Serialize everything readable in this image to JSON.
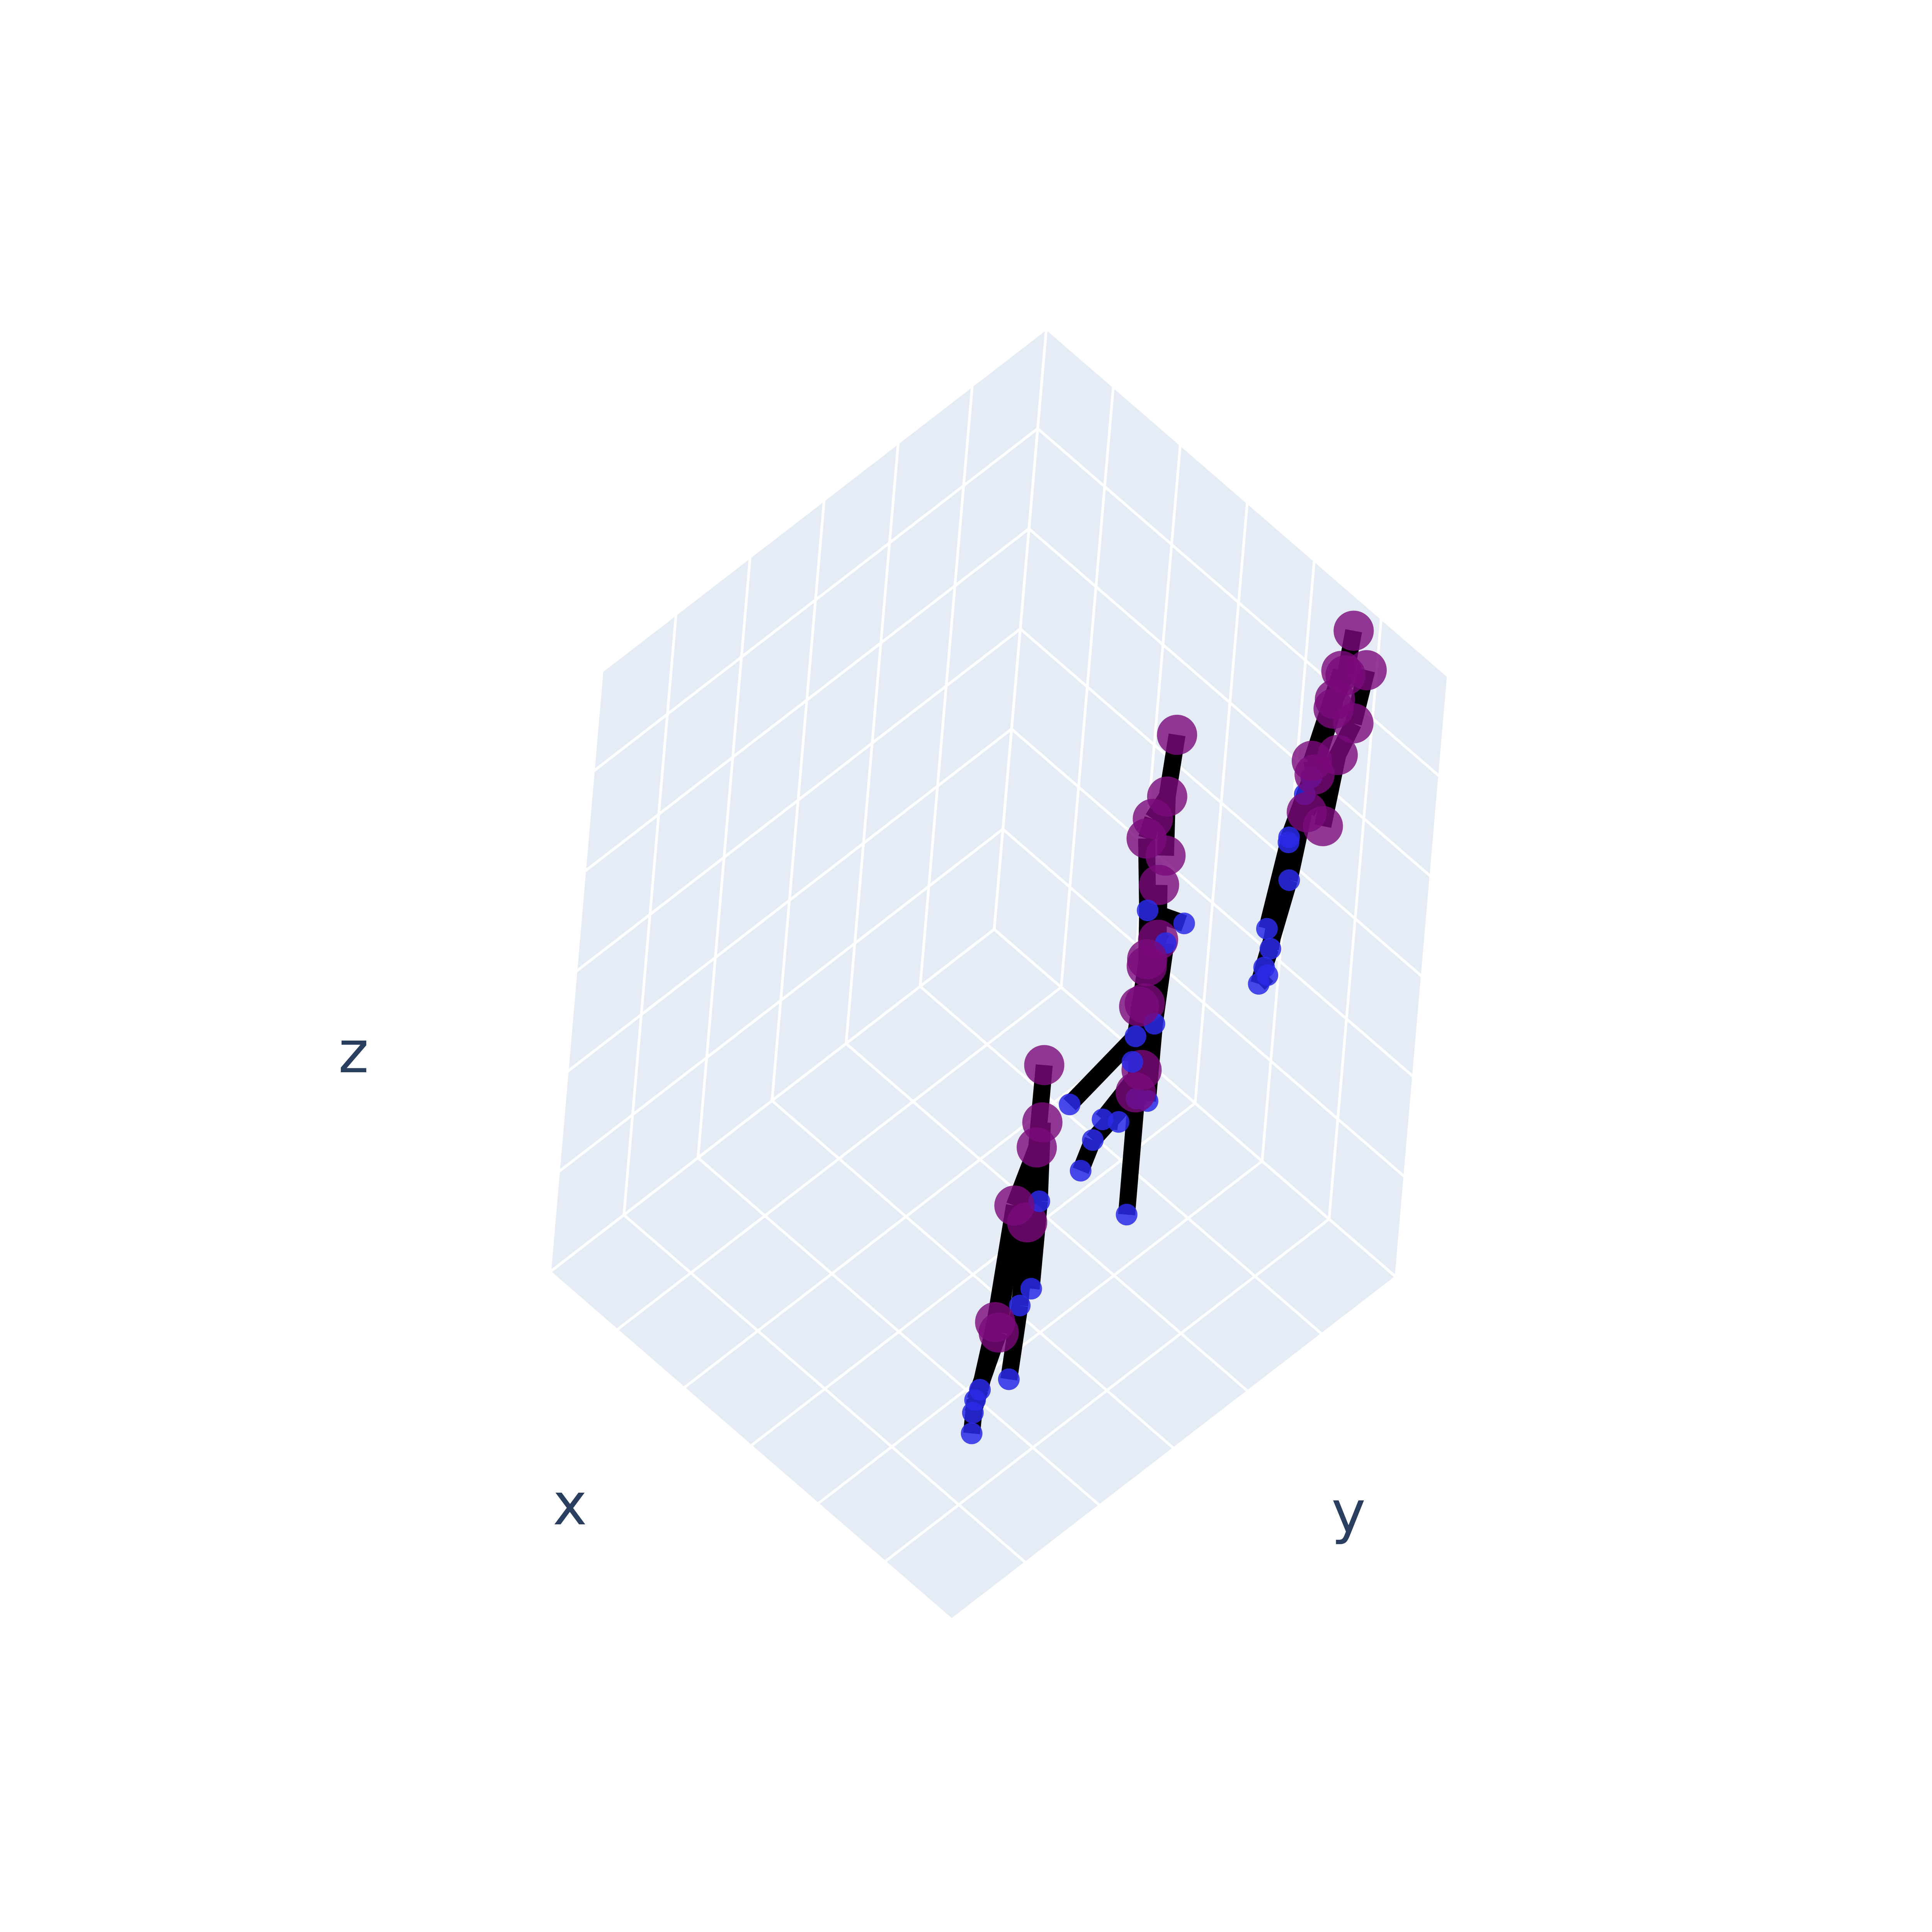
{
  "chart_data": {
    "type": "scatter",
    "mode": "3d-markers-and-lines",
    "scene": {
      "background_color": "#e5ecf6",
      "grid_color": "#ffffff",
      "grid": true,
      "axes": {
        "x": {
          "label": "x",
          "range": [
            0,
            1
          ],
          "tick_labels_shown": false
        },
        "y": {
          "label": "y",
          "range": [
            0,
            1
          ],
          "tick_labels_shown": false
        },
        "z": {
          "label": "z",
          "range": [
            0,
            1
          ],
          "tick_labels_shown": false
        }
      }
    },
    "styles": {
      "bone_color": "#000000",
      "joint_large_color": "#7a0a7a",
      "joint_small_color": "#2a2ae6"
    },
    "skeletons": [
      {
        "joints": [
          {
            "x": 0.07,
            "y": 0.18,
            "z": 0.78,
            "kind": "large"
          },
          {
            "x": 0.09,
            "y": 0.2,
            "z": 0.62,
            "kind": "large"
          },
          {
            "x": 0.03,
            "y": 0.13,
            "z": 0.57,
            "kind": "large"
          },
          {
            "x": 0.13,
            "y": 0.25,
            "z": 0.61,
            "kind": "large"
          },
          {
            "x": 0.04,
            "y": 0.14,
            "z": 0.42,
            "kind": "small"
          },
          {
            "x": 0.15,
            "y": 0.28,
            "z": 0.45,
            "kind": "small"
          },
          {
            "x": 0.06,
            "y": 0.15,
            "z": 0.28,
            "kind": "small"
          },
          {
            "x": 0.18,
            "y": 0.31,
            "z": 0.27,
            "kind": "small"
          },
          {
            "x": 0.13,
            "y": 0.2,
            "z": 0.5,
            "kind": "large"
          },
          {
            "x": 0.16,
            "y": 0.22,
            "z": 0.26,
            "kind": "large"
          },
          {
            "x": 0.18,
            "y": 0.23,
            "z": 0.26,
            "kind": "large"
          },
          {
            "x": 0.23,
            "y": 0.25,
            "z": 0.09,
            "kind": "small"
          },
          {
            "x": 0.24,
            "y": 0.27,
            "z": 0.09,
            "kind": "small"
          },
          {
            "x": 0.26,
            "y": 0.28,
            "z": 0.0,
            "kind": "small"
          },
          {
            "x": 0.29,
            "y": 0.31,
            "z": 0.0,
            "kind": "small"
          }
        ],
        "bones": [
          [
            0,
            1
          ],
          [
            1,
            2
          ],
          [
            1,
            3
          ],
          [
            2,
            4
          ],
          [
            4,
            6
          ],
          [
            3,
            5
          ],
          [
            5,
            7
          ],
          [
            1,
            8
          ],
          [
            8,
            9
          ],
          [
            8,
            10
          ],
          [
            9,
            11
          ],
          [
            10,
            12
          ],
          [
            11,
            13
          ],
          [
            12,
            14
          ]
        ]
      },
      {
        "joints": [
          {
            "x": 0.09,
            "y": 0.44,
            "z": 0.92,
            "kind": "large"
          },
          {
            "x": 0.11,
            "y": 0.47,
            "z": 0.8,
            "kind": "large"
          },
          {
            "x": 0.08,
            "y": 0.42,
            "z": 0.74,
            "kind": "large"
          },
          {
            "x": 0.13,
            "y": 0.51,
            "z": 0.76,
            "kind": "small"
          },
          {
            "x": 0.09,
            "y": 0.43,
            "z": 0.57,
            "kind": "small"
          },
          {
            "x": 0.14,
            "y": 0.51,
            "z": 0.62,
            "kind": "small"
          },
          {
            "x": 0.07,
            "y": 0.41,
            "z": 0.4,
            "kind": "small"
          },
          {
            "x": 0.15,
            "y": 0.52,
            "z": 0.48,
            "kind": "small"
          },
          {
            "x": 0.15,
            "y": 0.48,
            "z": 0.66,
            "kind": "large"
          },
          {
            "x": 0.16,
            "y": 0.5,
            "z": 0.5,
            "kind": "large"
          },
          {
            "x": 0.17,
            "y": 0.52,
            "z": 0.52,
            "kind": "large"
          },
          {
            "x": 0.24,
            "y": 0.49,
            "z": 0.38,
            "kind": "small"
          },
          {
            "x": 0.26,
            "y": 0.53,
            "z": 0.38,
            "kind": "small"
          },
          {
            "x": 0.31,
            "y": 0.54,
            "z": 0.26,
            "kind": "small"
          },
          {
            "x": 0.28,
            "y": 0.59,
            "z": 0.33,
            "kind": "small"
          }
        ],
        "bones": [
          [
            0,
            1
          ],
          [
            1,
            2
          ],
          [
            1,
            3
          ],
          [
            2,
            4
          ],
          [
            4,
            6
          ],
          [
            3,
            5
          ],
          [
            5,
            7
          ],
          [
            1,
            8
          ],
          [
            8,
            9
          ],
          [
            8,
            10
          ],
          [
            9,
            11
          ],
          [
            10,
            12
          ],
          [
            11,
            13
          ],
          [
            12,
            14
          ]
        ]
      },
      {
        "joints": [
          {
            "x": 0.28,
            "y": 0.65,
            "z": 0.94,
            "kind": "large"
          },
          {
            "x": 0.3,
            "y": 0.66,
            "z": 0.82,
            "kind": "large"
          },
          {
            "x": 0.3,
            "y": 0.63,
            "z": 0.8,
            "kind": "large"
          },
          {
            "x": 0.32,
            "y": 0.64,
            "z": 0.75,
            "kind": "large"
          },
          {
            "x": 0.34,
            "y": 0.71,
            "z": 0.67,
            "kind": "large"
          },
          {
            "x": 0.38,
            "y": 0.72,
            "z": 0.55,
            "kind": "small"
          },
          {
            "x": 0.36,
            "y": 0.79,
            "z": 0.5,
            "kind": "small"
          },
          {
            "x": 0.39,
            "y": 0.74,
            "z": 0.44,
            "kind": "large"
          },
          {
            "x": 0.4,
            "y": 0.75,
            "z": 0.44,
            "kind": "large"
          },
          {
            "x": 0.45,
            "y": 0.79,
            "z": 0.26,
            "kind": "small"
          },
          {
            "x": 0.5,
            "y": 0.84,
            "z": 0.16,
            "kind": "small"
          },
          {
            "x": 0.56,
            "y": 0.76,
            "z": 0.1,
            "kind": "small"
          }
        ],
        "bones": [
          [
            0,
            1
          ],
          [
            1,
            2
          ],
          [
            2,
            3
          ],
          [
            1,
            4
          ],
          [
            3,
            5
          ],
          [
            5,
            6
          ],
          [
            5,
            7
          ],
          [
            7,
            8
          ],
          [
            8,
            9
          ],
          [
            9,
            10
          ],
          [
            9,
            11
          ]
        ]
      },
      {
        "joints": [
          {
            "x": 0.18,
            "y": 0.95,
            "z": 1.0,
            "kind": "large"
          },
          {
            "x": 0.19,
            "y": 0.95,
            "z": 0.92,
            "kind": "large"
          },
          {
            "x": 0.21,
            "y": 0.96,
            "z": 0.91,
            "kind": "large"
          },
          {
            "x": 0.2,
            "y": 0.94,
            "z": 0.88,
            "kind": "large"
          },
          {
            "x": 0.23,
            "y": 0.97,
            "z": 0.83,
            "kind": "large"
          },
          {
            "x": 0.22,
            "y": 0.92,
            "z": 0.75,
            "kind": "small"
          },
          {
            "x": 0.24,
            "y": 0.9,
            "z": 0.65,
            "kind": "small"
          },
          {
            "x": 0.25,
            "y": 0.91,
            "z": 0.63,
            "kind": "small"
          },
          {
            "x": 0.27,
            "y": 0.96,
            "z": 0.67,
            "kind": "small"
          },
          {
            "x": 0.26,
            "y": 0.93,
            "z": 0.55,
            "kind": "small"
          },
          {
            "x": 0.28,
            "y": 0.92,
            "z": 0.43,
            "kind": "small"
          },
          {
            "x": 0.31,
            "y": 0.94,
            "z": 0.37,
            "kind": "small"
          },
          {
            "x": 0.3,
            "y": 0.92,
            "z": 0.36,
            "kind": "small"
          },
          {
            "x": 0.32,
            "y": 0.96,
            "z": 0.34,
            "kind": "small"
          },
          {
            "x": 0.34,
            "y": 0.97,
            "z": 0.4,
            "kind": "small"
          },
          {
            "x": 0.27,
            "y": 0.97,
            "z": 0.72,
            "kind": "large"
          },
          {
            "x": 0.28,
            "y": 0.99,
            "z": 0.68,
            "kind": "large"
          },
          {
            "x": 0.19,
            "y": 1.0,
            "z": 0.9,
            "kind": "large"
          },
          {
            "x": 0.21,
            "y": 1.0,
            "z": 0.8,
            "kind": "large"
          },
          {
            "x": 0.24,
            "y": 1.0,
            "z": 0.73,
            "kind": "large"
          },
          {
            "x": 0.26,
            "y": 1.0,
            "z": 0.6,
            "kind": "large"
          },
          {
            "x": 0.3,
            "y": 1.0,
            "z": 0.6,
            "kind": "large"
          }
        ],
        "bones": [
          [
            0,
            1
          ],
          [
            1,
            3
          ],
          [
            3,
            4
          ],
          [
            4,
            5
          ],
          [
            5,
            6
          ],
          [
            6,
            10
          ],
          [
            10,
            11
          ],
          [
            5,
            9
          ],
          [
            9,
            12
          ],
          [
            12,
            13
          ],
          [
            7,
            14
          ],
          [
            2,
            15
          ],
          [
            15,
            16
          ],
          [
            16,
            8
          ],
          [
            17,
            18
          ],
          [
            18,
            19
          ],
          [
            19,
            20
          ],
          [
            19,
            21
          ]
        ]
      }
    ]
  },
  "labels": {
    "x": "x",
    "y": "y",
    "z": "z"
  }
}
